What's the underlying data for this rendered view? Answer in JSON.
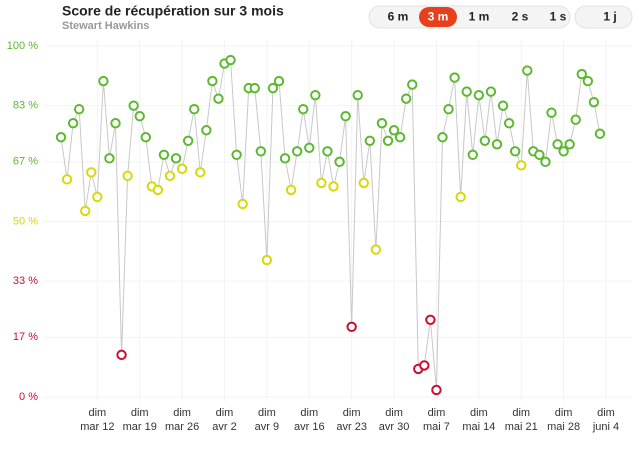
{
  "chart_data": {
    "type": "line",
    "title": "Score de récupération sur 3 mois",
    "subtitle": "Stewart Hawkins",
    "controls": {
      "ranges": [
        "6 m",
        "3 m",
        "1 m",
        "2 s",
        "1 s"
      ],
      "active": "3 m",
      "extra": "1 j"
    },
    "categories": [
      null,
      null,
      null,
      null,
      null,
      null,
      [
        "dim",
        "mar 12"
      ],
      null,
      null,
      null,
      null,
      null,
      null,
      [
        "dim",
        "mar 19"
      ],
      null,
      null,
      null,
      null,
      null,
      null,
      [
        "dim",
        "mar 26"
      ],
      null,
      null,
      null,
      null,
      null,
      null,
      [
        "dim",
        "avr 2"
      ],
      null,
      null,
      null,
      null,
      null,
      null,
      [
        "dim",
        "avr 9"
      ],
      null,
      null,
      null,
      null,
      null,
      null,
      [
        "dim",
        "avr 16"
      ],
      null,
      null,
      null,
      null,
      null,
      null,
      [
        "dim",
        "avr 23"
      ],
      null,
      null,
      null,
      null,
      null,
      null,
      [
        "dim",
        "avr 30"
      ],
      null,
      null,
      null,
      null,
      null,
      null,
      [
        "dim",
        "mai 7"
      ],
      null,
      null,
      null,
      null,
      null,
      null,
      [
        "dim",
        "mai 14"
      ],
      null,
      null,
      null,
      null,
      null,
      null,
      [
        "dim",
        "mai 21"
      ],
      null,
      null,
      null,
      null,
      null,
      null,
      [
        "dim",
        "mai 28"
      ],
      null,
      null,
      null,
      null,
      null,
      null,
      [
        "dim",
        "juni 4"
      ]
    ],
    "series": [
      {
        "values": [
          74,
          62,
          78,
          82,
          53,
          64,
          57,
          90,
          68,
          78,
          12,
          63,
          83,
          80,
          74,
          60,
          59,
          69,
          63,
          68,
          65,
          73,
          82,
          64,
          76,
          90,
          85,
          95,
          96,
          69,
          55,
          88,
          88,
          70,
          39,
          88,
          90,
          68,
          59,
          70,
          82,
          71,
          86,
          61,
          70,
          60,
          67,
          80,
          20,
          86,
          61,
          73,
          42,
          78,
          73,
          76,
          74,
          85,
          89,
          8,
          9,
          22,
          2,
          74,
          82,
          91,
          57,
          87,
          69,
          86,
          73,
          87,
          72,
          83,
          78,
          70,
          66,
          93,
          70,
          69,
          67,
          81,
          72,
          70,
          72,
          79,
          92,
          90,
          84,
          75,
          null
        ]
      }
    ],
    "ylim": [
      0,
      100
    ],
    "yticks": [
      {
        "value": 0,
        "label": "0 %"
      },
      {
        "value": 17,
        "label": "17 %"
      },
      {
        "value": 33,
        "label": "33 %"
      },
      {
        "value": 50,
        "label": "50 %"
      },
      {
        "value": 67,
        "label": "67 %"
      },
      {
        "value": 83,
        "label": "83 %"
      },
      {
        "value": 100,
        "label": "100 %"
      }
    ],
    "zones": [
      {
        "min": 67,
        "color": "#5cb82e"
      },
      {
        "min": 34,
        "color": "#d8d80c"
      },
      {
        "min": 0,
        "color": "#c8102e"
      }
    ],
    "line_color": "#c8c8c8",
    "grid": true
  }
}
